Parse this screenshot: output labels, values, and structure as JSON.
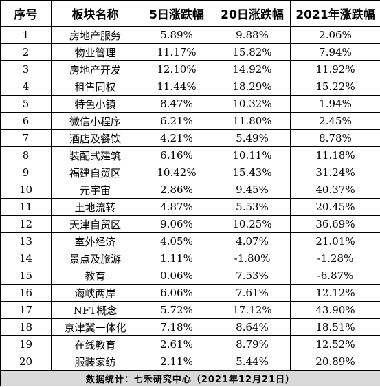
{
  "headers": [
    "序号",
    "板块名称",
    "5日涨跌幅",
    "20日涨跌幅",
    "2021年涨跌幅"
  ],
  "rows": [
    [
      "1",
      "房地产服务",
      "5.89%",
      "9.88%",
      "2.06%"
    ],
    [
      "2",
      "物业管理",
      "11.17%",
      "15.82%",
      "7.94%"
    ],
    [
      "3",
      "房地产开发",
      "12.10%",
      "14.92%",
      "11.92%"
    ],
    [
      "4",
      "租售同权",
      "11.44%",
      "18.29%",
      "15.22%"
    ],
    [
      "5",
      "特色小镇",
      "8.47%",
      "10.32%",
      "1.94%"
    ],
    [
      "6",
      "微信小程序",
      "6.21%",
      "11.80%",
      "2.45%"
    ],
    [
      "7",
      "酒店及餐饮",
      "4.21%",
      "5.49%",
      "8.78%"
    ],
    [
      "8",
      "装配式建筑",
      "6.16%",
      "10.11%",
      "11.18%"
    ],
    [
      "9",
      "福建自贸区",
      "10.42%",
      "15.43%",
      "31.24%"
    ],
    [
      "10",
      "元宇宙",
      "2.86%",
      "9.45%",
      "40.37%"
    ],
    [
      "11",
      "土地流转",
      "4.87%",
      "5.53%",
      "20.45%"
    ],
    [
      "12",
      "天津自贸区",
      "9.06%",
      "10.25%",
      "36.69%"
    ],
    [
      "13",
      "室外经济",
      "4.05%",
      "4.07%",
      "21.01%"
    ],
    [
      "14",
      "景点及旅游",
      "1.11%",
      "-1.80%",
      "-1.28%"
    ],
    [
      "15",
      "教育",
      "0.06%",
      "7.53%",
      "-6.87%"
    ],
    [
      "16",
      "海峡两岸",
      "6.06%",
      "7.61%",
      "12.12%"
    ],
    [
      "17",
      "NFT概念",
      "5.72%",
      "17.12%",
      "43.90%"
    ],
    [
      "18",
      "京津冀一体化",
      "7.18%",
      "8.64%",
      "18.51%"
    ],
    [
      "19",
      "在线教育",
      "2.61%",
      "8.79%",
      "12.52%"
    ],
    [
      "20",
      "服装家纺",
      "2.11%",
      "5.44%",
      "20.89%"
    ]
  ],
  "footer": "数据统计：七禾研究中心（2021年12月21日）"
}
